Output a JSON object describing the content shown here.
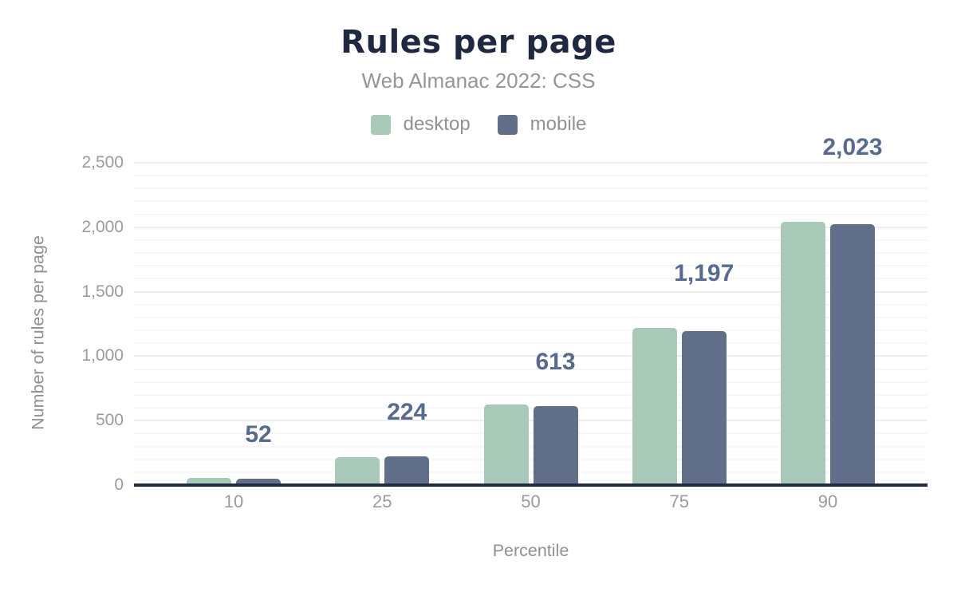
{
  "header": {
    "title": "Rules per page",
    "subtitle": "Web Almanac 2022: CSS"
  },
  "legend": [
    {
      "label": "desktop",
      "color": "#a8c8b8"
    },
    {
      "label": "mobile",
      "color": "#616f8a"
    }
  ],
  "axes": {
    "x_title": "Percentile",
    "y_title": "Number of rules per page",
    "x_ticks": [
      "10",
      "25",
      "50",
      "75",
      "90"
    ],
    "y_ticks": [
      {
        "value": 0,
        "label": "0"
      },
      {
        "value": 500,
        "label": "500"
      },
      {
        "value": 1000,
        "label": "1,000"
      },
      {
        "value": 1500,
        "label": "1,500"
      },
      {
        "value": 2000,
        "label": "2,000"
      },
      {
        "value": 2500,
        "label": "2,500"
      }
    ]
  },
  "chart_data": {
    "type": "bar",
    "title": "Rules per page",
    "subtitle": "Web Almanac 2022: CSS",
    "categories": [
      "10",
      "25",
      "50",
      "75",
      "90"
    ],
    "series": [
      {
        "name": "desktop",
        "color": "#a8c8b8",
        "values": [
          53,
          217,
          624,
          1218,
          2044
        ]
      },
      {
        "name": "mobile",
        "color": "#616f8a",
        "values": [
          52,
          224,
          613,
          1197,
          2023
        ]
      }
    ],
    "data_labels": {
      "series": "mobile",
      "values": [
        "52",
        "224",
        "613",
        "1,197",
        "2,023"
      ]
    },
    "xlabel": "Percentile",
    "ylabel": "Number of rules per page",
    "ylim": [
      0,
      2500
    ],
    "y_major_step": 500,
    "y_minor_step": 100,
    "grid": "horizontal-only",
    "legend_position": "top-center"
  },
  "colors": {
    "title": "#1e2841",
    "subtitle": "#969696",
    "axis_text": "#9b9b9b",
    "axis_line": "#202b45",
    "value_label": "#576b90",
    "grid_major": "#eeeeee",
    "grid_minor": "#f7f7f7",
    "background": "#ffffff"
  }
}
